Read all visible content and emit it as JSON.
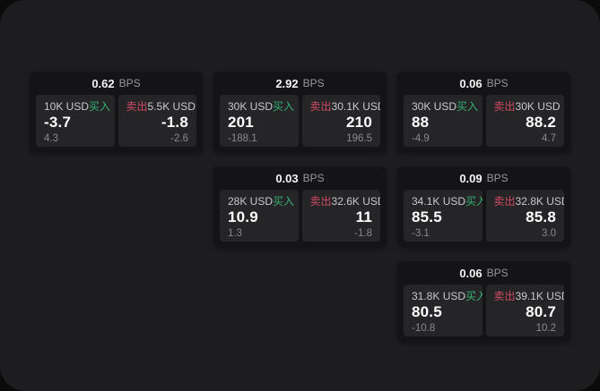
{
  "labels": {
    "bps_unit": "BPS",
    "buy": "买入",
    "sell": "卖出"
  },
  "colors": {
    "buy": "#35b06f",
    "sell": "#cf4a60",
    "window_bg": "#1d1d1f",
    "card_bg": "#141416",
    "panel_bg": "#252528"
  },
  "cards": [
    {
      "bps": "0.62",
      "row": 1,
      "col": 1,
      "buy": {
        "amount": "10K USD",
        "price": "-3.7",
        "delta": "4.3"
      },
      "sell": {
        "amount": "5.5K USD",
        "price": "-1.8",
        "delta": "-2.6"
      }
    },
    {
      "bps": "2.92",
      "row": 1,
      "col": 2,
      "buy": {
        "amount": "30K USD",
        "price": "201",
        "delta": "-188.1"
      },
      "sell": {
        "amount": "30.1K USD",
        "price": "210",
        "delta": "196.5"
      }
    },
    {
      "bps": "0.06",
      "row": 1,
      "col": 3,
      "buy": {
        "amount": "30K USD",
        "price": "88",
        "delta": "-4.9"
      },
      "sell": {
        "amount": "30K USD",
        "price": "88.2",
        "delta": "4.7"
      }
    },
    {
      "bps": "0.03",
      "row": 2,
      "col": 2,
      "buy": {
        "amount": "28K USD",
        "price": "10.9",
        "delta": "1.3"
      },
      "sell": {
        "amount": "32.6K USD",
        "price": "11",
        "delta": "-1.8"
      }
    },
    {
      "bps": "0.09",
      "row": 2,
      "col": 3,
      "buy": {
        "amount": "34.1K USD",
        "price": "85.5",
        "delta": "-3.1"
      },
      "sell": {
        "amount": "32.8K USD",
        "price": "85.8",
        "delta": "3.0"
      }
    },
    {
      "bps": "0.06",
      "row": 3,
      "col": 3,
      "buy": {
        "amount": "31.8K USD",
        "price": "80.5",
        "delta": "-10.8"
      },
      "sell": {
        "amount": "39.1K USD",
        "price": "80.7",
        "delta": "10.2"
      }
    }
  ]
}
